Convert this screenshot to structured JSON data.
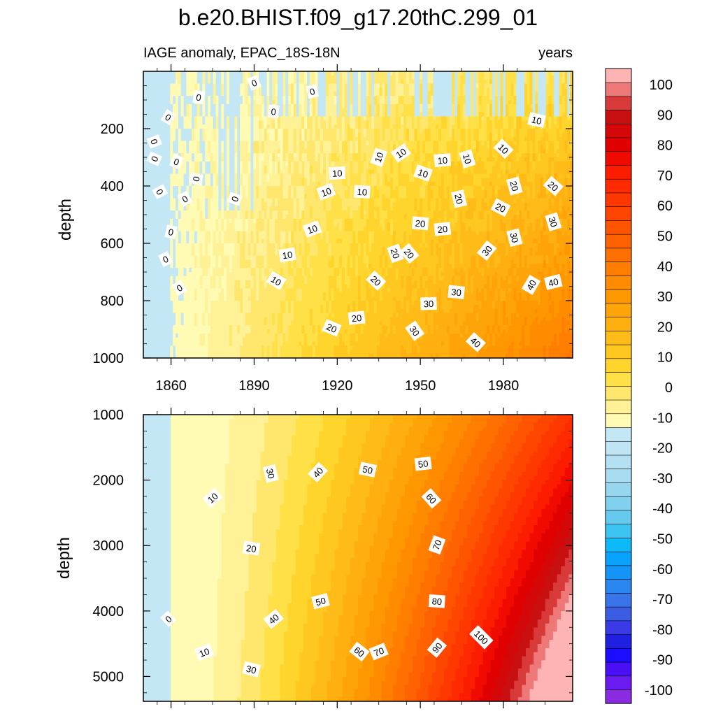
{
  "chart_data": {
    "type": "heatmap",
    "title": "b.e20.BHIST.f09_g17.20thC.299_01",
    "subtitle_left": "IAGE anomaly, EPAC_18S-18N",
    "subtitle_right": "years",
    "xlabel": "",
    "ylabel": "depth",
    "x_range": [
      1850,
      2005
    ],
    "x_ticks": [
      1860,
      1890,
      1920,
      1950,
      1980
    ],
    "x_tick_labels": [
      "1860",
      "1890",
      "1920",
      "1950",
      "1980"
    ],
    "panels": [
      {
        "id": "upper",
        "depth_range": [
          0,
          1000
        ],
        "depth_ticks": [
          200,
          400,
          600,
          800,
          1000
        ],
        "depth_tick_labels": [
          "200",
          "400",
          "600",
          "800",
          "1000"
        ],
        "contour_labels": [
          {
            "year": 1870,
            "depth": 90,
            "value": "0"
          },
          {
            "year": 1890,
            "depth": 40,
            "value": "0"
          },
          {
            "year": 1897,
            "depth": 140,
            "value": "0"
          },
          {
            "year": 1911,
            "depth": 70,
            "value": "0"
          },
          {
            "year": 1859,
            "depth": 160,
            "value": "0"
          },
          {
            "year": 1854,
            "depth": 245,
            "value": "0"
          },
          {
            "year": 1854,
            "depth": 305,
            "value": "0"
          },
          {
            "year": 1862,
            "depth": 315,
            "value": "0"
          },
          {
            "year": 1869,
            "depth": 375,
            "value": "0"
          },
          {
            "year": 1856,
            "depth": 420,
            "value": "0"
          },
          {
            "year": 1865,
            "depth": 445,
            "value": "0"
          },
          {
            "year": 1883,
            "depth": 445,
            "value": "0"
          },
          {
            "year": 1860,
            "depth": 560,
            "value": "0"
          },
          {
            "year": 1858,
            "depth": 655,
            "value": "0"
          },
          {
            "year": 1863,
            "depth": 755,
            "value": "0"
          },
          {
            "year": 1920,
            "depth": 355,
            "value": "10"
          },
          {
            "year": 1935,
            "depth": 300,
            "value": "10"
          },
          {
            "year": 1943,
            "depth": 285,
            "value": "10"
          },
          {
            "year": 1951,
            "depth": 355,
            "value": "10"
          },
          {
            "year": 1958,
            "depth": 310,
            "value": "10"
          },
          {
            "year": 1967,
            "depth": 305,
            "value": "10"
          },
          {
            "year": 1980,
            "depth": 270,
            "value": "10"
          },
          {
            "year": 1992,
            "depth": 170,
            "value": "10"
          },
          {
            "year": 1916,
            "depth": 420,
            "value": "10"
          },
          {
            "year": 1929,
            "depth": 420,
            "value": "10"
          },
          {
            "year": 1911,
            "depth": 550,
            "value": "10"
          },
          {
            "year": 1902,
            "depth": 640,
            "value": "10"
          },
          {
            "year": 1898,
            "depth": 730,
            "value": "10"
          },
          {
            "year": 1964,
            "depth": 445,
            "value": "20"
          },
          {
            "year": 1979,
            "depth": 475,
            "value": "20"
          },
          {
            "year": 1984,
            "depth": 400,
            "value": "20"
          },
          {
            "year": 1998,
            "depth": 400,
            "value": "20"
          },
          {
            "year": 1950,
            "depth": 530,
            "value": "20"
          },
          {
            "year": 1958,
            "depth": 550,
            "value": "20"
          },
          {
            "year": 1941,
            "depth": 635,
            "value": "20"
          },
          {
            "year": 1946,
            "depth": 635,
            "value": "20"
          },
          {
            "year": 1934,
            "depth": 730,
            "value": "20"
          },
          {
            "year": 1927,
            "depth": 860,
            "value": "20"
          },
          {
            "year": 1918,
            "depth": 895,
            "value": "20"
          },
          {
            "year": 1998,
            "depth": 525,
            "value": "30"
          },
          {
            "year": 1984,
            "depth": 580,
            "value": "30"
          },
          {
            "year": 1974,
            "depth": 625,
            "value": "30"
          },
          {
            "year": 1963,
            "depth": 770,
            "value": "30"
          },
          {
            "year": 1953,
            "depth": 810,
            "value": "30"
          },
          {
            "year": 1948,
            "depth": 905,
            "value": "30"
          },
          {
            "year": 1990,
            "depth": 745,
            "value": "40"
          },
          {
            "year": 1998,
            "depth": 735,
            "value": "40"
          },
          {
            "year": 1970,
            "depth": 945,
            "value": "40"
          }
        ]
      },
      {
        "id": "lower",
        "depth_range": [
          1000,
          5380
        ],
        "depth_ticks": [
          1000,
          2000,
          3000,
          4000,
          5000
        ],
        "depth_tick_labels": [
          "1000",
          "2000",
          "3000",
          "4000",
          "5000"
        ],
        "contour_labels": [
          {
            "year": 1875,
            "depth": 2270,
            "value": "10"
          },
          {
            "year": 1872,
            "depth": 4630,
            "value": "10"
          },
          {
            "year": 1896,
            "depth": 1900,
            "value": "30"
          },
          {
            "year": 1889,
            "depth": 4890,
            "value": "30"
          },
          {
            "year": 1889,
            "depth": 3040,
            "value": "20"
          },
          {
            "year": 1913,
            "depth": 1880,
            "value": "40"
          },
          {
            "year": 1897,
            "depth": 4120,
            "value": "40"
          },
          {
            "year": 1931,
            "depth": 1840,
            "value": "50"
          },
          {
            "year": 1914,
            "depth": 3850,
            "value": "50"
          },
          {
            "year": 1951,
            "depth": 1750,
            "value": "50"
          },
          {
            "year": 1954,
            "depth": 2280,
            "value": "60"
          },
          {
            "year": 1928,
            "depth": 4620,
            "value": "60"
          },
          {
            "year": 1956,
            "depth": 2990,
            "value": "70"
          },
          {
            "year": 1935,
            "depth": 4620,
            "value": "70"
          },
          {
            "year": 1956,
            "depth": 3850,
            "value": "80"
          },
          {
            "year": 1956,
            "depth": 4560,
            "value": "90"
          },
          {
            "year": 1972,
            "depth": 4400,
            "value": "100"
          },
          {
            "year": 1859,
            "depth": 4120,
            "value": "0"
          }
        ]
      }
    ],
    "colorbar": {
      "levels": [
        -100,
        -90,
        -80,
        -70,
        -60,
        -50,
        -40,
        -30,
        -20,
        -10,
        0,
        10,
        20,
        30,
        40,
        50,
        60,
        70,
        80,
        90,
        100
      ],
      "labels": [
        "100",
        "90",
        "80",
        "70",
        "60",
        "50",
        "40",
        "30",
        "20",
        "10",
        "0",
        "-10",
        "-20",
        "-30",
        "-40",
        "-50",
        "-60",
        "-70",
        "-80",
        "-90",
        "-100"
      ],
      "colors_bottom_to_top": [
        "#8a2be2",
        "#6a1bf0",
        "#4a10f5",
        "#1c0dff",
        "#2020e0",
        "#3a3ae6",
        "#3c5ce4",
        "#3a74ea",
        "#2a86f0",
        "#1494f6",
        "#0aa2ff",
        "#0cbaf8",
        "#3cc4f2",
        "#64cbef",
        "#80d1ee",
        "#96d6ef",
        "#a8dcf0",
        "#b3e0f2",
        "#bfe5f4",
        "#c4e7f5",
        "#fffbb4",
        "#fff196",
        "#ffe76e",
        "#ffe046",
        "#ffd42c",
        "#ffc820",
        "#ffbc18",
        "#ffb010",
        "#ffa408",
        "#ff9800",
        "#ff8c00",
        "#ff7e00",
        "#ff7000",
        "#ff6200",
        "#ff5400",
        "#ff4600",
        "#ff3800",
        "#ff2a00",
        "#fc1c00",
        "#f00a00",
        "#e00000",
        "#d40808",
        "#c81010",
        "#d83a3a",
        "#ee7878",
        "#ffb4b4"
      ]
    }
  }
}
